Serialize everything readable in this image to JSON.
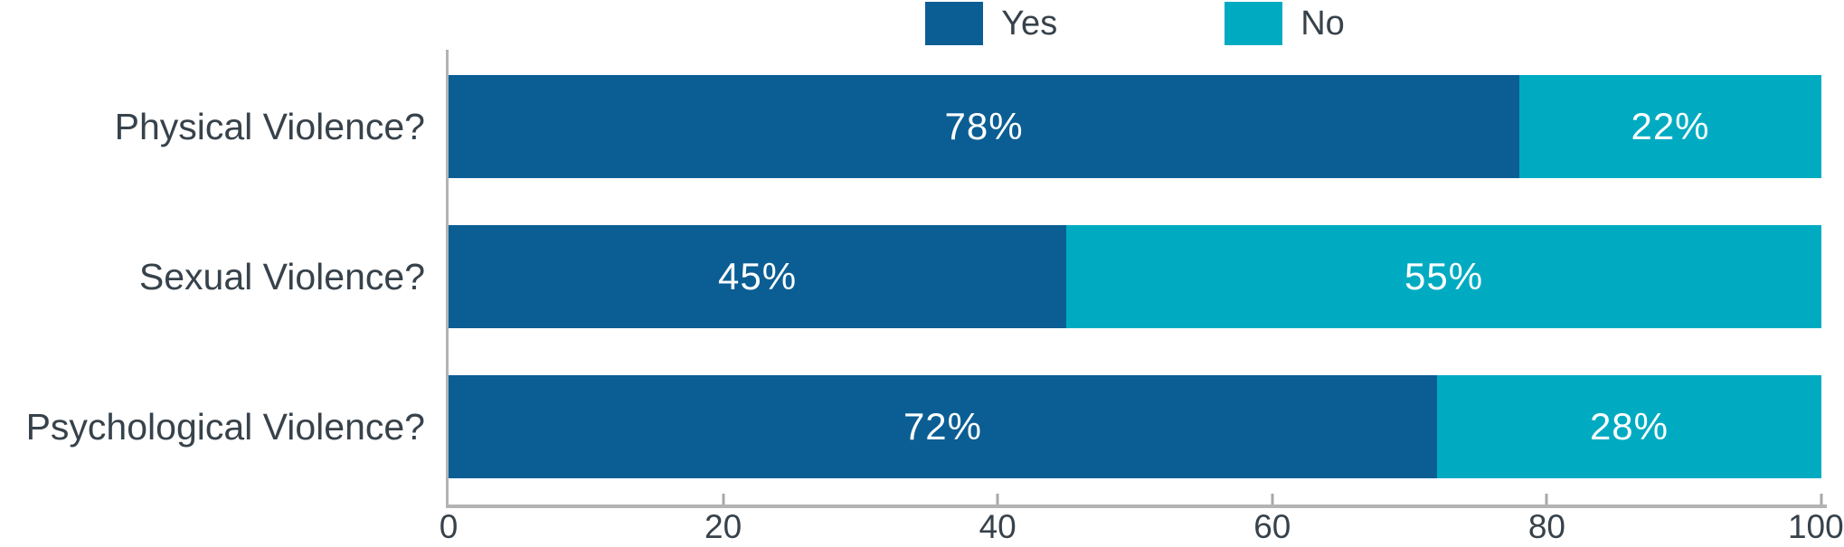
{
  "chart_data": {
    "type": "bar",
    "orientation": "horizontal",
    "stacked": true,
    "title": "",
    "xlabel": "",
    "ylabel": "",
    "categories": [
      "Physical Violence?",
      "Sexual Violence?",
      "Psychological Violence?"
    ],
    "series": [
      {
        "name": "Yes",
        "color": "#0b5e94",
        "values": [
          78,
          45,
          72
        ],
        "labels": [
          "78%",
          "45%",
          "72%"
        ]
      },
      {
        "name": "No",
        "color": "#00abc2",
        "values": [
          22,
          55,
          28
        ],
        "labels": [
          "22%",
          "55%",
          "28%"
        ]
      }
    ],
    "xlim": [
      0,
      100
    ],
    "x_ticks": [
      "0",
      "20",
      "40",
      "60",
      "80",
      "100"
    ],
    "grid": false,
    "legend_position": "top",
    "value_label_color": "#ffffff"
  },
  "legend": {
    "items": [
      {
        "label": "Yes",
        "color": "#0b5e94"
      },
      {
        "label": "No",
        "color": "#00abc2"
      }
    ]
  },
  "axis": {
    "line_color": "#b3b3b3",
    "tick_color": "#a8a8a8",
    "label_color": "#37424b"
  },
  "colors": {
    "background": "#ffffff",
    "category_text": "#37424b",
    "bar_value_text": "#ffffff"
  }
}
